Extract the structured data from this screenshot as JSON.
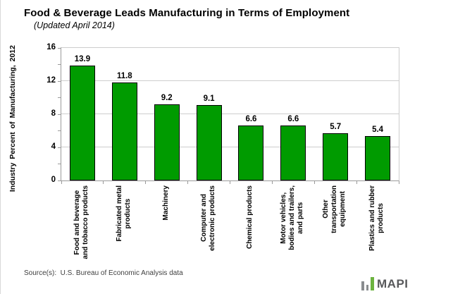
{
  "chart_data": {
    "type": "bar",
    "title": "Food & Beverage Leads Manufacturing in Terms of Employment",
    "subtitle": "(Updated April 2014)",
    "ylabel": "Industry Percent of Manufacturing, 2012",
    "ylim": [
      0,
      16
    ],
    "yticks": [
      0,
      4,
      8,
      12,
      16
    ],
    "ytick_minor_interval": 2,
    "grid": true,
    "legend_position": "none",
    "bar_color": "#009B00",
    "bar_border_color": "#000000",
    "categories": [
      "Food and beverage\nand tobacco products",
      "Fabricated metal\nproducts",
      "Machinery",
      "Computer and\nelectronic products",
      "Chemical products",
      "Motor vehicles,\nbodies and trailers,\nand parts",
      "Other\ntransportation\nequipment",
      "Plastics and rubber\nproducts"
    ],
    "values": [
      13.9,
      11.8,
      9.2,
      9.1,
      6.6,
      6.6,
      5.7,
      5.4
    ],
    "value_labels": [
      "13.9",
      "11.8",
      "9.2",
      "9.1",
      "6.6",
      "6.6",
      "5.7",
      "5.4"
    ]
  },
  "footer": {
    "source": "Source(s):  U.S. Bureau of Economic Analysis data"
  },
  "logo": {
    "text": "MAPI",
    "text_color": "#58595B",
    "bar_colors": [
      "#8A8D8F",
      "#8A8D8F",
      "#6CB33F"
    ]
  }
}
